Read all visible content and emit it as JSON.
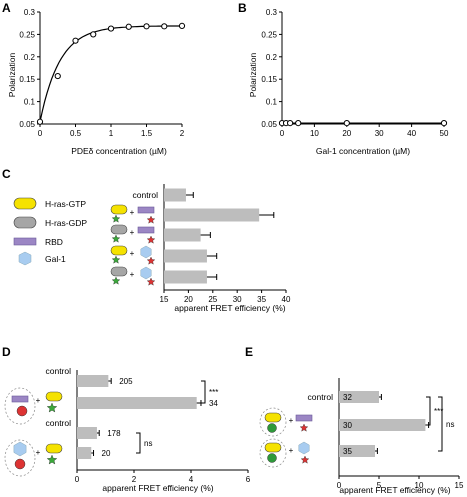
{
  "panels": {
    "A": "A",
    "B": "B",
    "C": "C",
    "D": "D",
    "E": "E"
  },
  "legend_c": {
    "items": [
      {
        "label": "H-ras-GTP",
        "color": "#f5e200"
      },
      {
        "label": "H-ras-GDP",
        "color": "#a6a6a6"
      },
      {
        "label": "RBD",
        "color": "#9b86c4"
      },
      {
        "label": "Gal-1",
        "color": "#a8ccf0"
      }
    ]
  },
  "chart_data": [
    {
      "id": "A",
      "type": "line",
      "xlabel": "PDEδ concentration (µM)",
      "ylabel": "Polarization",
      "xlim": [
        0,
        2
      ],
      "ylim": [
        0.05,
        0.3
      ],
      "xticks": [
        "0",
        "0.5",
        "1",
        "1.5",
        "2"
      ],
      "yticks": [
        "0.05",
        "0.1",
        "0.15",
        "0.2",
        "0.25",
        "0.3"
      ],
      "x": [
        0,
        0.25,
        0.5,
        0.75,
        1.0,
        1.25,
        1.5,
        1.75,
        2.0
      ],
      "y": [
        0.055,
        0.157,
        0.236,
        0.25,
        0.263,
        0.267,
        0.268,
        0.268,
        0.269
      ]
    },
    {
      "id": "B",
      "type": "line",
      "xlabel": "Gal-1 concentration (µM)",
      "ylabel": "Polarization",
      "xlim": [
        0,
        50
      ],
      "ylim": [
        0.05,
        0.3
      ],
      "xticks": [
        "0",
        "10",
        "20",
        "30",
        "40",
        "50"
      ],
      "yticks": [
        "0.05",
        "0.1",
        "0.15",
        "0.2",
        "0.25",
        "0.3"
      ],
      "x": [
        0,
        1.25,
        2.5,
        5,
        20,
        50
      ],
      "y": [
        0.052,
        0.052,
        0.052,
        0.052,
        0.052,
        0.052
      ]
    },
    {
      "id": "C",
      "type": "bar",
      "orientation": "horizontal",
      "xlabel": "apparent FRET efficiency (%)",
      "xlim": [
        15,
        40
      ],
      "xticks": [
        "15",
        "20",
        "25",
        "30",
        "35",
        "40"
      ],
      "categories": [
        "control",
        "",
        "",
        "",
        ""
      ],
      "values": [
        19.5,
        34.5,
        22.5,
        23.8,
        23.8
      ],
      "errors": [
        1.5,
        3.0,
        2.0,
        2.0,
        2.0
      ]
    },
    {
      "id": "D",
      "type": "bar",
      "orientation": "horizontal",
      "xlabel": "apparent FRET efficiency (%)",
      "xlim": [
        0,
        6
      ],
      "xticks": [
        "0",
        "2",
        "4",
        "6"
      ],
      "categories": [
        "control",
        "",
        "control",
        ""
      ],
      "values": [
        1.1,
        4.2,
        0.7,
        0.5
      ],
      "errors": [
        0.1,
        0.15,
        0.08,
        0.08
      ],
      "n_labels": [
        "205",
        "34",
        "178",
        "20"
      ],
      "significance": [
        {
          "label": "***"
        },
        {
          "label": "ns"
        }
      ]
    },
    {
      "id": "E",
      "type": "bar",
      "orientation": "horizontal",
      "xlabel": "apparent FRET efficiency (%)",
      "xlim": [
        0,
        15
      ],
      "xticks": [
        "0",
        "5",
        "10",
        "15"
      ],
      "categories": [
        "control",
        "",
        ""
      ],
      "values": [
        5.0,
        10.8,
        4.5
      ],
      "errors": [
        0.3,
        0.4,
        0.3
      ],
      "n_labels": [
        "32",
        "30",
        "35"
      ],
      "significance": [
        {
          "label": "***"
        },
        {
          "label": "ns"
        }
      ]
    }
  ]
}
